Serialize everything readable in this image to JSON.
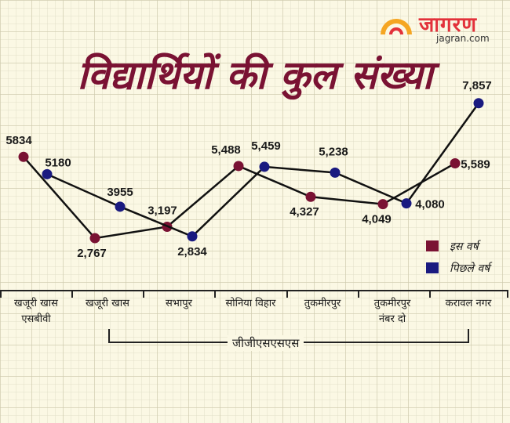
{
  "logo": {
    "name": "जागरण",
    "url": "jagran.com",
    "color": "#e2313a"
  },
  "colors": {
    "current": "#7a1233",
    "previous": "#1a1a80",
    "title": "#7a1233"
  },
  "chart_data": {
    "type": "line",
    "title": "विद्यार्थियों की कुल संख्या",
    "legend": "right",
    "grid": true,
    "ylim": [
      2000,
      8500
    ],
    "categories": [
      "खजूरी खास एसबीवी",
      "खजूरी खास",
      "सभापुर",
      "सोनिया विहार",
      "तुकमीरपुर",
      "तुकमीरपुर नंबर दो",
      "करावल नगर"
    ],
    "group": "जीजीएसएसएस",
    "series": [
      {
        "name": "इस वर्ष",
        "values": [
          5834,
          2767,
          3197,
          5488,
          4327,
          4049,
          5589
        ],
        "labels": [
          "5834",
          "2,767",
          "3,197",
          "5,488",
          "4,327",
          "4,049",
          "5,589"
        ]
      },
      {
        "name": "पिछले वर्ष",
        "values": [
          5180,
          3955,
          2834,
          5459,
          5238,
          4080,
          7857
        ],
        "labels": [
          "5180",
          "3955",
          "2,834",
          "5,459",
          "5,238",
          "4,080",
          "7,857"
        ]
      }
    ]
  }
}
